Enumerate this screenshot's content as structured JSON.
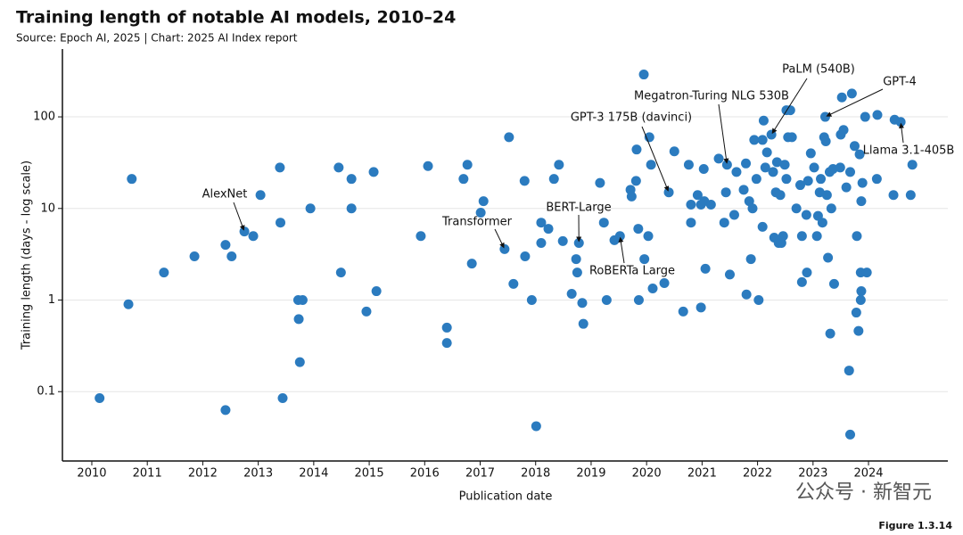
{
  "chart_data": {
    "type": "scatter",
    "title": "Training length of notable AI models, 2010–24",
    "subtitle": "Source: Epoch AI, 2025 | Chart: 2025 AI Index report",
    "x_label": "Publication date",
    "y_label": "Training length (days - log scale)",
    "footer": "Figure 1.3.14",
    "watermark": "公众号 · 新智元",
    "color": "#2b7bbf",
    "log_y": true,
    "grid": true,
    "xlim": [
      2009.47,
      2025.43
    ],
    "ylim": [
      0.0175,
      550
    ],
    "xticks": [
      2010,
      2011,
      2012,
      2013,
      2014,
      2015,
      2016,
      2017,
      2018,
      2019,
      2020,
      2021,
      2022,
      2023,
      2024
    ],
    "yticks": [
      0.1,
      1,
      10,
      100
    ],
    "x": [
      2010.14,
      2010.66,
      2010.72,
      2011.3,
      2011.85,
      2012.41,
      2012.41,
      2012.52,
      2012.75,
      2012.91,
      2013.04,
      2013.39,
      2013.4,
      2013.44,
      2013.72,
      2013.8,
      2013.73,
      2013.75,
      2013.94,
      2014.45,
      2014.49,
      2014.68,
      2014.68,
      2014.95,
      2015.08,
      2015.13,
      2015.93,
      2016.06,
      2016.4,
      2016.4,
      2016.7,
      2016.77,
      2016.85,
      2017.01,
      2017.06,
      2017.44,
      2017.52,
      2017.6,
      2017.8,
      2017.81,
      2017.93,
      2018.01,
      2018.1,
      2018.1,
      2018.23,
      2018.33,
      2018.42,
      2018.49,
      2018.65,
      2018.73,
      2018.75,
      2018.78,
      2018.84,
      2018.86,
      2019.16,
      2019.23,
      2019.28,
      2019.42,
      2019.52,
      2019.71,
      2019.73,
      2019.81,
      2019.82,
      2019.85,
      2019.86,
      2019.95,
      2019.96,
      2020.03,
      2020.05,
      2020.08,
      2020.11,
      2020.32,
      2020.4,
      2020.5,
      2020.66,
      2020.76,
      2020.8,
      2020.8,
      2020.92,
      2020.98,
      2020.98,
      2021.03,
      2021.06,
      2021.04,
      2021.16,
      2021.3,
      2021.4,
      2021.43,
      2021.45,
      2021.5,
      2021.58,
      2021.62,
      2021.75,
      2021.79,
      2021.8,
      2021.85,
      2021.88,
      2021.91,
      2021.94,
      2021.98,
      2022.02,
      2022.09,
      2022.09,
      2022.11,
      2022.14,
      2022.17,
      2022.25,
      2022.28,
      2022.3,
      2022.33,
      2022.35,
      2022.38,
      2022.41,
      2022.43,
      2022.46,
      2022.49,
      2022.52,
      2022.52,
      2022.59,
      2022.55,
      2022.62,
      2022.7,
      2022.77,
      2022.8,
      2022.8,
      2022.88,
      2022.89,
      2022.91,
      2022.96,
      2023.02,
      2023.07,
      2023.09,
      2023.12,
      2023.14,
      2023.17,
      2023.2,
      2023.22,
      2023.23,
      2023.25,
      2023.27,
      2023.3,
      2023.31,
      2023.33,
      2023.36,
      2023.38,
      2023.49,
      2023.5,
      2023.52,
      2023.55,
      2023.6,
      2023.65,
      2023.67,
      2023.67,
      2023.7,
      2023.75,
      2023.78,
      2023.79,
      2023.82,
      2023.84,
      2023.86,
      2023.86,
      2023.87,
      2023.87,
      2023.89,
      2023.94,
      2023.97,
      2024.15,
      2024.16,
      2024.45,
      2024.47,
      2024.58,
      2024.76,
      2024.79
    ],
    "values": [
      0.085,
      0.9,
      21,
      2,
      3,
      4,
      0.063,
      3,
      5.6,
      5,
      14,
      28,
      7,
      0.085,
      1,
      1,
      0.62,
      0.21,
      10,
      28,
      2,
      21,
      10,
      0.75,
      25,
      1.25,
      5,
      29,
      0.5,
      0.34,
      21,
      30,
      2.5,
      9,
      12,
      3.6,
      60,
      1.5,
      20,
      3,
      1,
      0.042,
      7,
      4.2,
      6,
      21,
      30,
      4.4,
      1.17,
      2.8,
      2,
      4.2,
      0.93,
      0.55,
      19,
      7,
      1,
      4.5,
      5,
      16,
      13.5,
      20,
      44,
      6,
      1,
      290,
      2.8,
      5,
      60,
      30,
      1.34,
      1.53,
      15,
      42,
      0.75,
      30,
      11,
      7,
      14,
      11,
      0.83,
      27,
      2.2,
      12,
      11,
      35,
      7,
      15,
      30,
      1.9,
      8.5,
      25,
      16,
      31,
      1.15,
      12,
      2.8,
      10,
      56,
      21,
      1,
      56,
      6.3,
      91,
      28,
      41,
      64,
      25,
      4.8,
      15,
      32,
      4.2,
      14,
      4.2,
      5,
      30,
      21,
      118,
      118,
      60,
      60,
      10,
      18,
      5,
      1.57,
      8.5,
      2,
      20,
      40,
      28,
      5,
      8.3,
      15,
      21,
      7,
      60,
      100,
      54,
      14,
      2.9,
      25,
      0.43,
      10,
      27,
      1.5,
      28,
      64,
      163,
      72,
      17,
      0.17,
      25,
      0.034,
      180,
      48,
      0.73,
      5,
      0.46,
      39,
      1,
      2,
      1.25,
      12,
      19,
      100,
      2,
      21,
      105,
      14,
      93,
      88,
      14,
      30
    ],
    "annotations": [
      {
        "text": "AlexNet",
        "x": 2012.75,
        "y": 5.6
      },
      {
        "text": "Transformer",
        "x": 2017.44,
        "y": 3.6
      },
      {
        "text": "BERT-Large",
        "x": 2018.78,
        "y": 4.2
      },
      {
        "text": "RoBERTa Large",
        "x": 2019.52,
        "y": 5
      },
      {
        "text": "GPT-3 175B (davinci)",
        "x": 2020.4,
        "y": 15
      },
      {
        "text": "Megatron-Turing NLG 530B",
        "x": 2021.45,
        "y": 30
      },
      {
        "text": "PaLM (540B)",
        "x": 2022.25,
        "y": 64
      },
      {
        "text": "GPT-4",
        "x": 2023.22,
        "y": 100
      },
      {
        "text": "Llama 3.1-405B",
        "x": 2024.58,
        "y": 88
      }
    ]
  }
}
